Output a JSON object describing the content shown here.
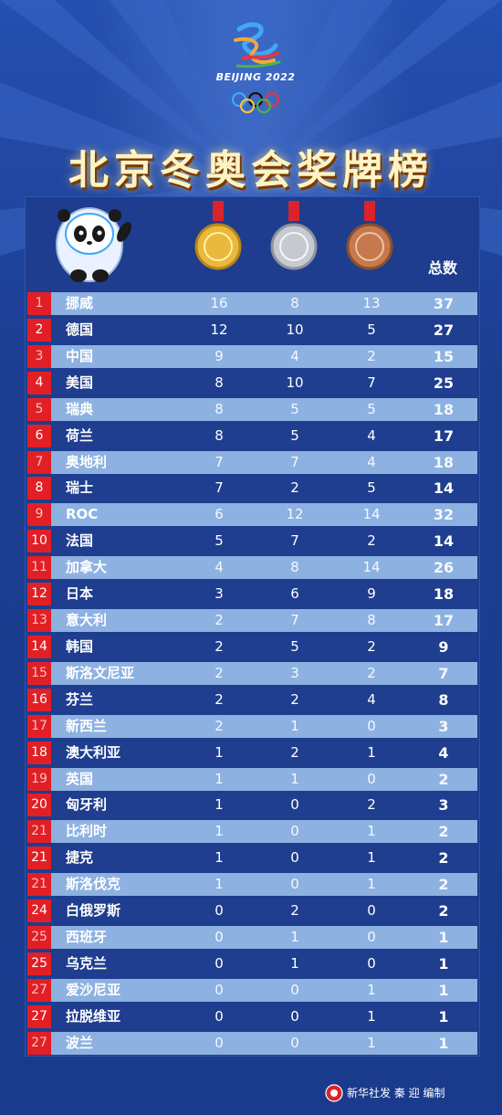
{
  "logo": {
    "text": "BEIJING 2022"
  },
  "title": "北京冬奥会奖牌榜",
  "header": {
    "total_label": "总数"
  },
  "colors": {
    "background": "#1e3f93",
    "rank_red": "#e11f25",
    "row_light": "#8db1e0",
    "row_dark": "#1f3e8f"
  },
  "rows": [
    {
      "rank": "1",
      "name": "挪威",
      "gold": "16",
      "silver": "8",
      "bronze": "13",
      "total": "37"
    },
    {
      "rank": "2",
      "name": "德国",
      "gold": "12",
      "silver": "10",
      "bronze": "5",
      "total": "27"
    },
    {
      "rank": "3",
      "name": "中国",
      "gold": "9",
      "silver": "4",
      "bronze": "2",
      "total": "15"
    },
    {
      "rank": "4",
      "name": "美国",
      "gold": "8",
      "silver": "10",
      "bronze": "7",
      "total": "25"
    },
    {
      "rank": "5",
      "name": "瑞典",
      "gold": "8",
      "silver": "5",
      "bronze": "5",
      "total": "18"
    },
    {
      "rank": "6",
      "name": "荷兰",
      "gold": "8",
      "silver": "5",
      "bronze": "4",
      "total": "17"
    },
    {
      "rank": "7",
      "name": "奥地利",
      "gold": "7",
      "silver": "7",
      "bronze": "4",
      "total": "18"
    },
    {
      "rank": "8",
      "name": "瑞士",
      "gold": "7",
      "silver": "2",
      "bronze": "5",
      "total": "14"
    },
    {
      "rank": "9",
      "name": "ROC",
      "gold": "6",
      "silver": "12",
      "bronze": "14",
      "total": "32"
    },
    {
      "rank": "10",
      "name": "法国",
      "gold": "5",
      "silver": "7",
      "bronze": "2",
      "total": "14"
    },
    {
      "rank": "11",
      "name": "加拿大",
      "gold": "4",
      "silver": "8",
      "bronze": "14",
      "total": "26"
    },
    {
      "rank": "12",
      "name": "日本",
      "gold": "3",
      "silver": "6",
      "bronze": "9",
      "total": "18"
    },
    {
      "rank": "13",
      "name": "意大利",
      "gold": "2",
      "silver": "7",
      "bronze": "8",
      "total": "17"
    },
    {
      "rank": "14",
      "name": "韩国",
      "gold": "2",
      "silver": "5",
      "bronze": "2",
      "total": "9"
    },
    {
      "rank": "15",
      "name": "斯洛文尼亚",
      "gold": "2",
      "silver": "3",
      "bronze": "2",
      "total": "7"
    },
    {
      "rank": "16",
      "name": "芬兰",
      "gold": "2",
      "silver": "2",
      "bronze": "4",
      "total": "8"
    },
    {
      "rank": "17",
      "name": "新西兰",
      "gold": "2",
      "silver": "1",
      "bronze": "0",
      "total": "3"
    },
    {
      "rank": "18",
      "name": "澳大利亚",
      "gold": "1",
      "silver": "2",
      "bronze": "1",
      "total": "4"
    },
    {
      "rank": "19",
      "name": "英国",
      "gold": "1",
      "silver": "1",
      "bronze": "0",
      "total": "2"
    },
    {
      "rank": "20",
      "name": "匈牙利",
      "gold": "1",
      "silver": "0",
      "bronze": "2",
      "total": "3"
    },
    {
      "rank": "21",
      "name": "比利时",
      "gold": "1",
      "silver": "0",
      "bronze": "1",
      "total": "2"
    },
    {
      "rank": "21",
      "name": "捷克",
      "gold": "1",
      "silver": "0",
      "bronze": "1",
      "total": "2"
    },
    {
      "rank": "21",
      "name": "斯洛伐克",
      "gold": "1",
      "silver": "0",
      "bronze": "1",
      "total": "2"
    },
    {
      "rank": "24",
      "name": "白俄罗斯",
      "gold": "0",
      "silver": "2",
      "bronze": "0",
      "total": "2"
    },
    {
      "rank": "25",
      "name": "西班牙",
      "gold": "0",
      "silver": "1",
      "bronze": "0",
      "total": "1"
    },
    {
      "rank": "25",
      "name": "乌克兰",
      "gold": "0",
      "silver": "1",
      "bronze": "0",
      "total": "1"
    },
    {
      "rank": "27",
      "name": "爱沙尼亚",
      "gold": "0",
      "silver": "0",
      "bronze": "1",
      "total": "1"
    },
    {
      "rank": "27",
      "name": "拉脱维亚",
      "gold": "0",
      "silver": "0",
      "bronze": "1",
      "total": "1"
    },
    {
      "rank": "27",
      "name": "波兰",
      "gold": "0",
      "silver": "0",
      "bronze": "1",
      "total": "1"
    }
  ],
  "credit": "新华社发 秦 迎 编制"
}
